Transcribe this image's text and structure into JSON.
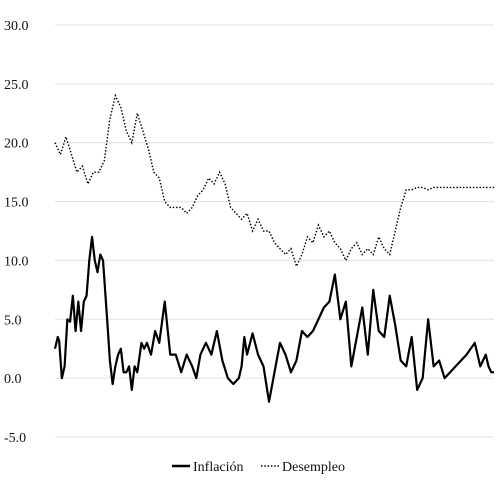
{
  "chart_data": {
    "type": "line",
    "title": "",
    "xlabel": "",
    "ylabel": "",
    "ylim": [
      -5,
      30
    ],
    "yticks": [
      "30.0",
      "25.0",
      "20.0",
      "15.0",
      "10.0",
      "5.0",
      "0.0",
      "-5.0"
    ],
    "grid": "horizontal",
    "legend_position": "bottom",
    "colors": {
      "inflacion": "#000000",
      "desempleo": "#000000"
    },
    "series": [
      {
        "name": "Inflación",
        "style": "solid",
        "x": [
          0,
          2,
          3,
          5,
          7,
          9,
          11,
          13,
          15,
          17,
          19,
          21,
          23,
          25,
          27,
          29,
          31,
          33,
          35,
          38,
          40,
          42,
          44,
          46,
          48,
          50,
          52,
          54,
          56,
          58,
          60,
          63,
          65,
          67,
          70,
          73,
          76,
          80,
          84,
          88,
          92,
          96,
          100,
          103,
          106,
          110,
          114,
          118,
          122,
          126,
          130,
          134,
          136,
          138,
          140,
          144,
          148,
          152,
          156,
          160,
          164,
          168,
          172,
          176,
          180,
          184,
          188,
          192,
          196,
          200,
          204,
          208,
          212,
          216,
          220,
          224,
          228,
          232,
          236,
          240,
          244,
          248,
          252,
          256,
          260,
          264,
          268,
          272,
          276,
          280,
          284,
          288,
          292,
          296,
          300,
          303,
          306,
          308,
          310,
          312,
          314,
          316,
          318,
          320
        ],
        "values": [
          2.5,
          3.5,
          3.2,
          0.0,
          1.0,
          5.0,
          4.8,
          7.0,
          4.0,
          6.5,
          4.0,
          6.5,
          7.0,
          10.0,
          12.0,
          10.0,
          9.0,
          10.5,
          10.0,
          5.0,
          1.5,
          -0.5,
          1.0,
          2.0,
          2.5,
          0.5,
          0.5,
          1.0,
          -1.0,
          1.0,
          0.5,
          3.0,
          2.5,
          3.0,
          2.0,
          4.0,
          3.0,
          6.5,
          2.0,
          2.0,
          0.5,
          2.0,
          1.0,
          0.0,
          2.0,
          3.0,
          2.0,
          4.0,
          1.5,
          0.0,
          -0.5,
          0.0,
          1.0,
          3.5,
          2.0,
          3.8,
          2.0,
          1.0,
          -2.0,
          0.5,
          3.0,
          2.0,
          0.5,
          1.5,
          4.0,
          3.5,
          4.0,
          5.0,
          6.0,
          6.5,
          8.8,
          5.0,
          6.5,
          1.0,
          3.5,
          6.0,
          2.0,
          7.5,
          4.0,
          3.5,
          7.0,
          4.5,
          1.5,
          1.0,
          3.5,
          -1.0,
          0.0,
          5.0,
          1.0,
          1.5,
          0.0,
          0.5,
          1.0,
          1.5,
          2.0,
          2.5,
          3.0,
          2.0,
          1.0,
          1.5,
          2.0,
          1.0,
          0.5,
          0.5
        ]
      },
      {
        "name": "Desempleo",
        "style": "dotted",
        "x": [
          0,
          4,
          8,
          12,
          16,
          20,
          24,
          28,
          32,
          36,
          40,
          44,
          48,
          52,
          56,
          60,
          64,
          68,
          72,
          76,
          80,
          84,
          88,
          92,
          96,
          100,
          104,
          108,
          112,
          116,
          120,
          124,
          128,
          132,
          136,
          140,
          144,
          148,
          152,
          156,
          160,
          164,
          168,
          172,
          176,
          180,
          184,
          188,
          192,
          196,
          200,
          204,
          208,
          212,
          216,
          220,
          224,
          228,
          232,
          236,
          240,
          244,
          248,
          252,
          256,
          260,
          264,
          268,
          272,
          276,
          280,
          284,
          288,
          292,
          296,
          300,
          304,
          308,
          312,
          316,
          320
        ],
        "values": [
          20.0,
          19.0,
          20.5,
          19.0,
          17.5,
          18.0,
          16.5,
          17.5,
          17.5,
          18.5,
          22.0,
          24.0,
          23.0,
          21.0,
          20.0,
          22.5,
          21.0,
          19.5,
          17.5,
          17.0,
          15.0,
          14.5,
          14.5,
          14.5,
          14.0,
          14.5,
          15.5,
          16.0,
          17.0,
          16.5,
          17.5,
          16.5,
          14.5,
          14.0,
          13.5,
          14.0,
          12.5,
          13.5,
          12.5,
          12.5,
          11.5,
          11.0,
          10.5,
          11.0,
          9.5,
          10.5,
          12.0,
          11.5,
          13.0,
          12.0,
          12.5,
          11.5,
          11.0,
          10.0,
          11.0,
          11.5,
          10.5,
          11.0,
          10.5,
          12.0,
          11.0,
          10.5,
          12.5,
          14.5,
          16.0,
          16.0,
          16.2,
          16.2,
          16.0,
          16.2,
          16.2,
          16.2,
          16.2,
          16.2,
          16.2,
          16.2,
          16.2,
          16.2,
          16.2,
          16.2,
          16.2
        ]
      }
    ]
  },
  "legend": {
    "items": [
      {
        "label": "Inflación"
      },
      {
        "label": "Desempleo"
      }
    ]
  }
}
